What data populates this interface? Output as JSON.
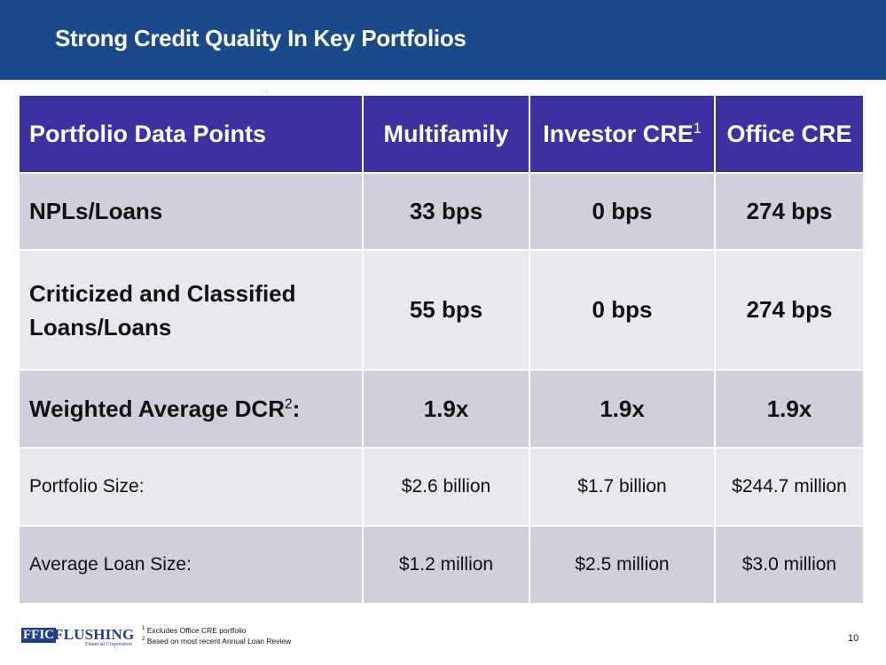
{
  "slide": {
    "title": "Strong Credit Quality In Key Portfolios",
    "page_number": "10"
  },
  "table": {
    "headers": {
      "col0": "Portfolio Data Points",
      "col1": "Multifamily",
      "col2": "Investor CRE",
      "col2_sup": "1",
      "col3": "Office CRE"
    },
    "rows": [
      {
        "label": "NPLs/Loans",
        "label_sup": "",
        "label_suffix": "",
        "multifamily": "33 bps",
        "investor_cre": "0 bps",
        "office_cre": "274 bps"
      },
      {
        "label": "Criticized and Classified Loans/Loans",
        "label_sup": "",
        "label_suffix": "",
        "multifamily": "55 bps",
        "investor_cre": "0 bps",
        "office_cre": "274 bps"
      },
      {
        "label": "Weighted Average DCR",
        "label_sup": "2",
        "label_suffix": ":",
        "multifamily": "1.9x",
        "investor_cre": "1.9x",
        "office_cre": "1.9x"
      },
      {
        "label": "Portfolio Size:",
        "label_sup": "",
        "label_suffix": "",
        "multifamily": "$2.6 billion",
        "investor_cre": "$1.7 billion",
        "office_cre": "$244.7 million"
      },
      {
        "label": "Average Loan Size:",
        "label_sup": "",
        "label_suffix": "",
        "multifamily": "$1.2 million",
        "investor_cre": "$2.5 million",
        "office_cre": "$3.0 million"
      }
    ]
  },
  "footer": {
    "logo_box": "FFIC",
    "logo_word": "FLUSHING",
    "logo_sub": "Financial Corporation",
    "footnote1_marker": "1",
    "footnote1": "Excludes Office CRE portfolio",
    "footnote2_marker": "2",
    "footnote2": "Based on most recent Annual Loan Review"
  },
  "colors": {
    "title_bar": "#1a4a8a",
    "header_row": "#3a32a0",
    "row_dark": "#cfcfde",
    "row_light": "#e8e8ee"
  }
}
